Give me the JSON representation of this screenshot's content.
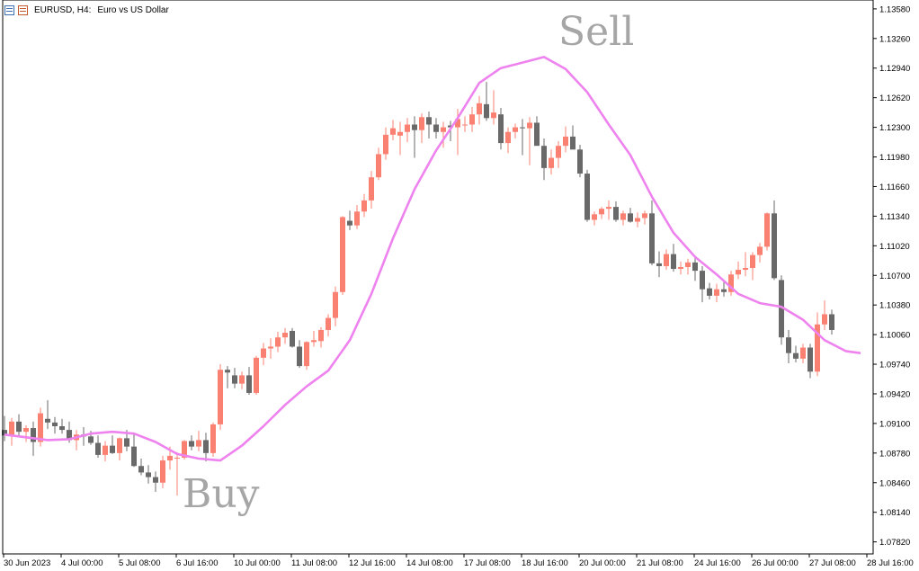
{
  "header": {
    "symbol": "EURUSD, H4:",
    "description": "Euro vs US Dollar"
  },
  "annotations": {
    "sell": "Sell",
    "buy": "Buy"
  },
  "colors": {
    "bull": "#fa8072",
    "bear": "#696969",
    "ma": "#ee82ee",
    "axis": "#000000",
    "annotation": "#a6a6a6"
  },
  "chart_data": {
    "type": "candlestick",
    "symbol": "EURUSD",
    "timeframe": "H4",
    "ylim": [
      1.0769,
      1.13676
    ],
    "y_ticks": [
      "1.13580",
      "1.13260",
      "1.12940",
      "1.12620",
      "1.12300",
      "1.11980",
      "1.11660",
      "1.11340",
      "1.11020",
      "1.10700",
      "1.10380",
      "1.10060",
      "1.09740",
      "1.09420",
      "1.09100",
      "1.08780",
      "1.08460",
      "1.08140",
      "1.07820"
    ],
    "x_ticks": [
      "30 Jun 2023",
      "4 Jul 00:00",
      "5 Jul 08:00",
      "6 Jul 16:00",
      "10 Jul 00:00",
      "11 Jul 08:00",
      "12 Jul 16:00",
      "14 Jul 08:00",
      "17 Jul 08:00",
      "18 Jul 16:00",
      "20 Jul 00:00",
      "21 Jul 08:00",
      "24 Jul 16:00",
      "26 Jul 00:00",
      "27 Jul 08:00",
      "28 Jul 16:00"
    ],
    "candles": [
      [
        1.0903,
        1.0918,
        1.0891,
        1.0897
      ],
      [
        1.0897,
        1.0916,
        1.0886,
        1.0912
      ],
      [
        1.0912,
        1.092,
        1.0897,
        1.0901
      ],
      [
        1.0901,
        1.0908,
        1.089,
        1.0905
      ],
      [
        1.0905,
        1.0912,
        1.0875,
        1.089
      ],
      [
        1.089,
        1.0927,
        1.0885,
        1.0921
      ],
      [
        1.0915,
        1.0935,
        1.0904,
        1.0911
      ],
      [
        1.0911,
        1.0917,
        1.0899,
        1.0907
      ],
      [
        1.0907,
        1.0915,
        1.0899,
        1.0903
      ],
      [
        1.0903,
        1.0912,
        1.0889,
        1.0892
      ],
      [
        1.0892,
        1.0903,
        1.0881,
        1.0898
      ],
      [
        1.0898,
        1.0906,
        1.0886,
        1.0896
      ],
      [
        1.0896,
        1.0902,
        1.0887,
        1.0889
      ],
      [
        1.0889,
        1.0897,
        1.0873,
        1.0876
      ],
      [
        1.0876,
        1.0891,
        1.0869,
        1.0886
      ],
      [
        1.0886,
        1.0897,
        1.0877,
        1.0878
      ],
      [
        1.0878,
        1.0895,
        1.087,
        1.0894
      ],
      [
        1.0894,
        1.0903,
        1.088,
        1.0885
      ],
      [
        1.0885,
        1.0899,
        1.0863,
        1.0864
      ],
      [
        1.0864,
        1.0872,
        1.0854,
        1.0857
      ],
      [
        1.0857,
        1.0865,
        1.0845,
        1.0852
      ],
      [
        1.0852,
        1.0858,
        1.0836,
        1.0846
      ],
      [
        1.0846,
        1.0875,
        1.084,
        1.087
      ],
      [
        1.087,
        1.0885,
        1.086,
        1.0875
      ],
      [
        1.0873,
        1.0879,
        1.0832,
        1.0873
      ],
      [
        1.0873,
        1.0892,
        1.0871,
        1.0891
      ],
      [
        1.0891,
        1.0897,
        1.0881,
        1.0885
      ],
      [
        1.0885,
        1.0902,
        1.088,
        1.0892
      ],
      [
        1.0892,
        1.09,
        1.0869,
        1.0878
      ],
      [
        1.0878,
        1.0911,
        1.0874,
        1.0909
      ],
      [
        1.0909,
        1.0974,
        1.0903,
        1.0968
      ],
      [
        1.0968,
        1.0972,
        1.0948,
        1.0965
      ],
      [
        1.0962,
        1.097,
        1.0948,
        1.0953
      ],
      [
        1.0953,
        1.0966,
        1.0947,
        1.0962
      ],
      [
        1.0962,
        1.0971,
        1.0941,
        1.0943
      ],
      [
        1.0943,
        1.0983,
        1.0941,
        1.0981
      ],
      [
        1.0981,
        1.0997,
        1.0973,
        1.0991
      ],
      [
        1.0991,
        1.1002,
        1.098,
        1.0993
      ],
      [
        1.0993,
        1.1009,
        1.0987,
        1.1003
      ],
      [
        1.1003,
        1.1013,
        1.0996,
        1.1008
      ],
      [
        1.101,
        1.1013,
        1.0992,
        1.0993
      ],
      [
        1.0993,
        1.1,
        1.097,
        1.0972
      ],
      [
        1.0972,
        1.0999,
        1.0968,
        1.0998
      ],
      [
        1.0998,
        1.101,
        1.0993,
        1.1
      ],
      [
        1.0999,
        1.1014,
        1.0992,
        1.1011
      ],
      [
        1.1011,
        1.1028,
        1.1004,
        1.1024
      ],
      [
        1.1024,
        1.1058,
        1.1015,
        1.1052
      ],
      [
        1.1052,
        1.1134,
        1.1049,
        1.1133
      ],
      [
        1.1129,
        1.114,
        1.1119,
        1.1124
      ],
      [
        1.1124,
        1.1146,
        1.112,
        1.1139
      ],
      [
        1.1139,
        1.1158,
        1.1133,
        1.1151
      ],
      [
        1.1151,
        1.1183,
        1.1142,
        1.1176
      ],
      [
        1.1176,
        1.1208,
        1.1173,
        1.1201
      ],
      [
        1.1201,
        1.123,
        1.1195,
        1.1222
      ],
      [
        1.1222,
        1.1238,
        1.1216,
        1.1229
      ],
      [
        1.1221,
        1.1236,
        1.12,
        1.1225
      ],
      [
        1.1225,
        1.124,
        1.1214,
        1.1233
      ],
      [
        1.1233,
        1.1242,
        1.1197,
        1.1227
      ],
      [
        1.1227,
        1.1245,
        1.1213,
        1.1241
      ],
      [
        1.1241,
        1.1247,
        1.1218,
        1.1233
      ],
      [
        1.1233,
        1.124,
        1.1218,
        1.1225
      ],
      [
        1.1225,
        1.1236,
        1.1208,
        1.123
      ],
      [
        1.1232,
        1.1237,
        1.1215,
        1.123
      ],
      [
        1.123,
        1.125,
        1.12,
        1.1239
      ],
      [
        1.1232,
        1.1242,
        1.1225,
        1.1233
      ],
      [
        1.1233,
        1.1252,
        1.1225,
        1.1244
      ],
      [
        1.1244,
        1.1264,
        1.1233,
        1.1256
      ],
      [
        1.1255,
        1.1279,
        1.1237,
        1.124
      ],
      [
        1.124,
        1.127,
        1.1233,
        1.1246
      ],
      [
        1.1244,
        1.1251,
        1.1206,
        1.1213
      ],
      [
        1.1213,
        1.123,
        1.1202,
        1.1225
      ],
      [
        1.1225,
        1.1234,
        1.1218,
        1.123
      ],
      [
        1.123,
        1.1239,
        1.12,
        1.1229
      ],
      [
        1.1229,
        1.1241,
        1.1189,
        1.1235
      ],
      [
        1.1235,
        1.1242,
        1.1211,
        1.121
      ],
      [
        1.121,
        1.1218,
        1.1173,
        1.1186
      ],
      [
        1.1186,
        1.1206,
        1.1179,
        1.1197
      ],
      [
        1.1197,
        1.1215,
        1.1186,
        1.121
      ],
      [
        1.121,
        1.1231,
        1.1203,
        1.122
      ],
      [
        1.122,
        1.1232,
        1.1207,
        1.1206
      ],
      [
        1.1206,
        1.1211,
        1.1176,
        1.118
      ],
      [
        1.118,
        1.1184,
        1.1128,
        1.113
      ],
      [
        1.113,
        1.1139,
        1.1124,
        1.1136
      ],
      [
        1.1136,
        1.1144,
        1.1131,
        1.1142
      ],
      [
        1.1142,
        1.1151,
        1.113,
        1.1144
      ],
      [
        1.1144,
        1.115,
        1.1128,
        1.113
      ],
      [
        1.113,
        1.114,
        1.1124,
        1.1137
      ],
      [
        1.1137,
        1.1143,
        1.1127,
        1.1128
      ],
      [
        1.1128,
        1.1138,
        1.1122,
        1.1132
      ],
      [
        1.1132,
        1.114,
        1.1125,
        1.1137
      ],
      [
        1.1137,
        1.1151,
        1.1081,
        1.1083
      ],
      [
        1.1083,
        1.1096,
        1.1068,
        1.108
      ],
      [
        1.108,
        1.1098,
        1.1076,
        1.1093
      ],
      [
        1.1093,
        1.1104,
        1.1074,
        1.1077
      ],
      [
        1.1077,
        1.1085,
        1.1071,
        1.1079
      ],
      [
        1.1079,
        1.1088,
        1.1071,
        1.1084
      ],
      [
        1.1084,
        1.1089,
        1.1064,
        1.1075
      ],
      [
        1.1075,
        1.108,
        1.1041,
        1.1055
      ],
      [
        1.1056,
        1.1062,
        1.1044,
        1.1048
      ],
      [
        1.1048,
        1.1061,
        1.1041,
        1.1055
      ],
      [
        1.1055,
        1.1064,
        1.1047,
        1.1052
      ],
      [
        1.1052,
        1.1075,
        1.1048,
        1.1071
      ],
      [
        1.1071,
        1.1085,
        1.1066,
        1.1076
      ],
      [
        1.1076,
        1.1095,
        1.1069,
        1.1078
      ],
      [
        1.1078,
        1.1095,
        1.1065,
        1.1092
      ],
      [
        1.1092,
        1.1105,
        1.1084,
        1.1101
      ],
      [
        1.1101,
        1.1138,
        1.1097,
        1.1137
      ],
      [
        1.1137,
        1.1151,
        1.1065,
        1.1067
      ],
      [
        1.1065,
        1.107,
        1.0995,
        1.1003
      ],
      [
        1.1003,
        1.1011,
        1.0975,
        1.0986
      ],
      [
        1.0986,
        1.0994,
        1.0976,
        1.098
      ],
      [
        1.098,
        1.0996,
        1.0975,
        1.0992
      ],
      [
        1.0992,
        1.0996,
        1.0959,
        1.0966
      ],
      [
        1.0966,
        1.103,
        1.0961,
        1.1017
      ],
      [
        1.1017,
        1.1043,
        1.1011,
        1.1028
      ],
      [
        1.1028,
        1.1033,
        1.1006,
        1.1011
      ]
    ],
    "moving_average": [
      [
        0,
        1.0898
      ],
      [
        3,
        1.0895
      ],
      [
        6,
        1.0892
      ],
      [
        9,
        1.0893
      ],
      [
        12,
        1.0899
      ],
      [
        15,
        1.0901
      ],
      [
        18,
        1.0899
      ],
      [
        21,
        1.089
      ],
      [
        24,
        1.0877
      ],
      [
        27,
        1.0872
      ],
      [
        30,
        1.087
      ],
      [
        33,
        1.0886
      ],
      [
        36,
        1.0907
      ],
      [
        39,
        1.093
      ],
      [
        42,
        1.095
      ],
      [
        45,
        1.0967
      ],
      [
        48,
        1.1
      ],
      [
        51,
        1.105
      ],
      [
        54,
        1.111
      ],
      [
        57,
        1.1163
      ],
      [
        60,
        1.1205
      ],
      [
        63,
        1.124
      ],
      [
        66,
        1.1278
      ],
      [
        69,
        1.1294
      ],
      [
        72,
        1.13
      ],
      [
        75,
        1.1306
      ],
      [
        78,
        1.1293
      ],
      [
        81,
        1.1268
      ],
      [
        84,
        1.1233
      ],
      [
        87,
        1.12
      ],
      [
        90,
        1.1155
      ],
      [
        93,
        1.1116
      ],
      [
        96,
        1.109
      ],
      [
        99,
        1.1071
      ],
      [
        102,
        1.105
      ],
      [
        105,
        1.104
      ],
      [
        108,
        1.1036
      ],
      [
        111,
        1.1022
      ],
      [
        114,
        1.1
      ],
      [
        117,
        1.0988
      ],
      [
        119,
        1.0986
      ]
    ],
    "grid": false
  }
}
